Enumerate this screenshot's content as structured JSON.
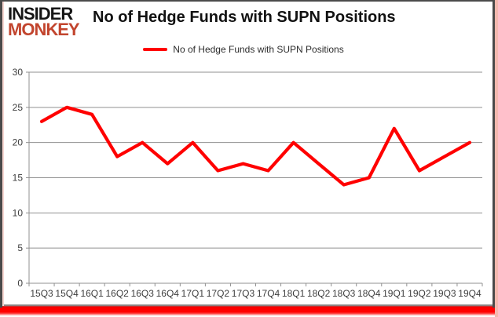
{
  "logo": {
    "line1": "INSIDER",
    "line2": "MONKEY"
  },
  "header": {
    "title": "No of Hedge Funds with SUPN Positions"
  },
  "legend": {
    "label": "No of Hedge Funds with SUPN Positions"
  },
  "colors": {
    "line": "#ff0000",
    "grid": "#909090",
    "axis_label": "#3d3d3d",
    "title": "#111111",
    "logo_primary": "#161616",
    "logo_accent": "#c2452e",
    "bottom_bar": "#ff0000",
    "frame": "#4a4a4a",
    "edge_glow": "#f3b8ae"
  },
  "chart_data": {
    "type": "line",
    "title": "No of Hedge Funds with SUPN Positions",
    "categories": [
      "15Q3",
      "15Q4",
      "16Q1",
      "16Q2",
      "16Q3",
      "16Q4",
      "17Q1",
      "17Q2",
      "17Q3",
      "17Q4",
      "18Q1",
      "18Q2",
      "18Q3",
      "18Q4",
      "19Q1",
      "19Q2",
      "19Q3",
      "19Q4"
    ],
    "series": [
      {
        "name": "No of Hedge Funds with SUPN Positions",
        "values": [
          23,
          25,
          24,
          18,
          20,
          17,
          20,
          16,
          17,
          16,
          20,
          17,
          14,
          15,
          22,
          16,
          18,
          20
        ]
      }
    ],
    "xlabel": "",
    "ylabel": "",
    "ylim": [
      0,
      30
    ],
    "yticks": [
      0,
      5,
      10,
      15,
      20,
      25,
      30
    ],
    "grid": true,
    "legend_position": "top-center"
  }
}
